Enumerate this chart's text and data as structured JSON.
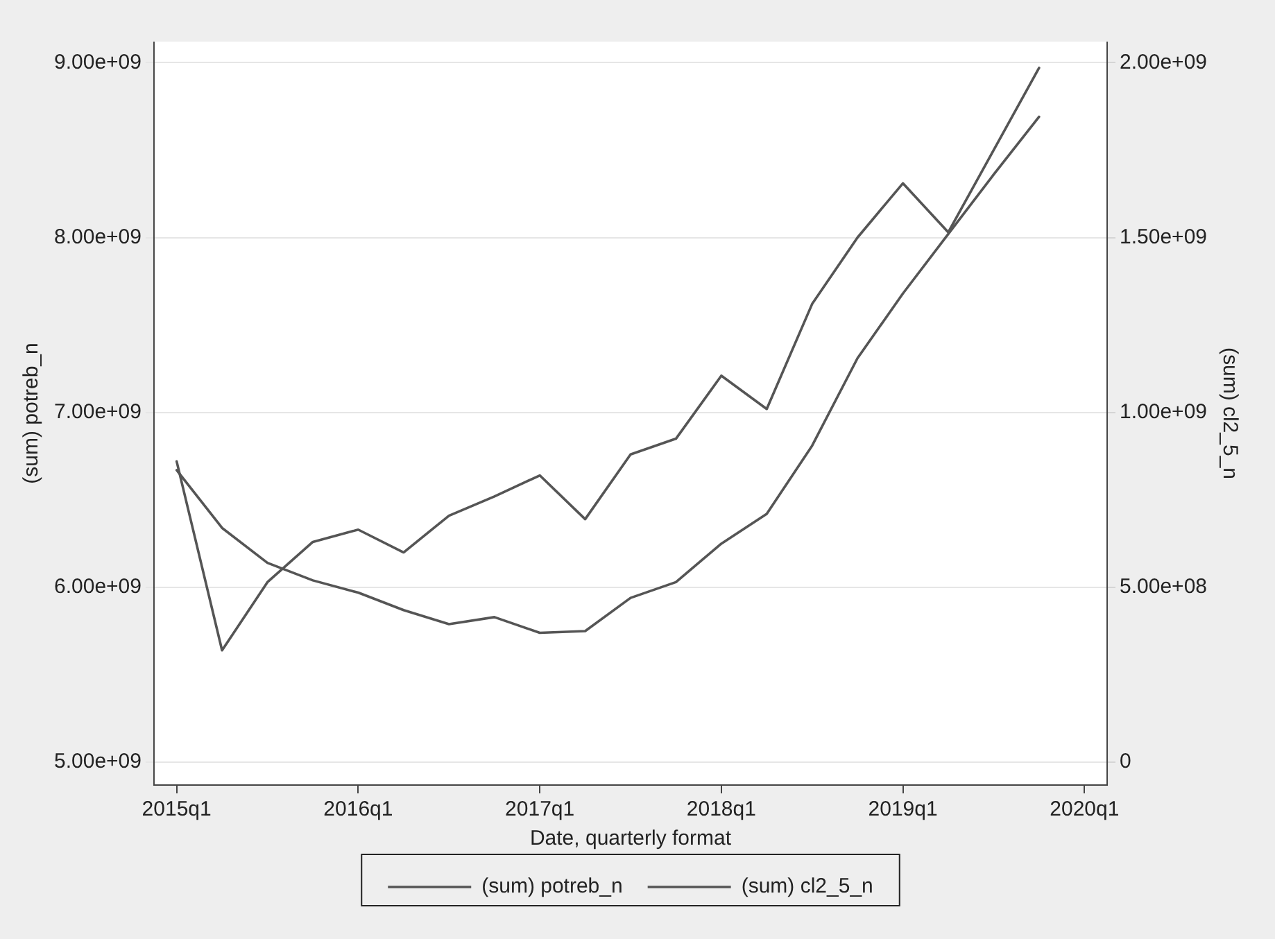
{
  "chart_data": {
    "type": "line",
    "xlabel": "Date, quarterly format",
    "ylabel": "(sum) potreb_n",
    "y2label": "(sum) cl2_5_n",
    "categories": [
      "2015q1",
      null,
      null,
      null,
      "2016q1",
      null,
      null,
      null,
      "2017q1",
      null,
      null,
      null,
      "2018q1",
      null,
      null,
      null,
      "2019q1",
      null,
      null,
      null,
      "2020q1"
    ],
    "series": [
      {
        "name": "(sum) potreb_n",
        "color": "#555555",
        "values": [
          6720000000.0,
          5640000000.0,
          6030000000.0,
          6260000000.0,
          6330000000.0,
          6200000000.0,
          6410000000.0,
          6520000000.0,
          6640000000.0,
          6390000000.0,
          6760000000.0,
          6850000000.0,
          7210000000.0,
          7020000000.0,
          7620000000.0,
          8000000000.0,
          8310000000.0,
          8030000000.0,
          8500000000.0,
          8970000000.0,
          null
        ]
      },
      {
        "name": "(sum) cl2_5_n",
        "color": "#555555",
        "axis": "y2",
        "values": [
          835000000.0,
          670000000.0,
          570000000.0,
          520000000.0,
          485000000.0,
          435000000.0,
          395000000.0,
          415000000.0,
          370000000.0,
          375000000.0,
          470000000.0,
          515000000.0,
          625000000.0,
          710000000.0,
          905000000.0,
          1155000000.0,
          1340000000.0,
          1510000000.0,
          1680000000.0,
          1845000000.0,
          null
        ]
      }
    ],
    "ylim": [
      4870000000.0,
      9120000000.0
    ],
    "yticks": [
      {
        "value": 5000000000.0,
        "label": "5.00e+09"
      },
      {
        "value": 6000000000.0,
        "label": "6.00e+09"
      },
      {
        "value": 7000000000.0,
        "label": "7.00e+09"
      },
      {
        "value": 8000000000.0,
        "label": "8.00e+09"
      },
      {
        "value": 9000000000.0,
        "label": "9.00e+09"
      }
    ],
    "y2lim": [
      -65000000.0,
      2060000000.0
    ],
    "y2ticks": [
      0,
      {
        "value": 500000000.0,
        "label": "5.00e+08"
      },
      {
        "value": 1000000000.0,
        "label": "1.00e+09"
      },
      {
        "value": 1500000000.0,
        "label": "1.50e+09"
      },
      {
        "value": 2000000000.0,
        "label": "2.00e+09"
      }
    ],
    "grid": "y",
    "legend": "bottom",
    "marker": "none",
    "line_style": "solid"
  }
}
